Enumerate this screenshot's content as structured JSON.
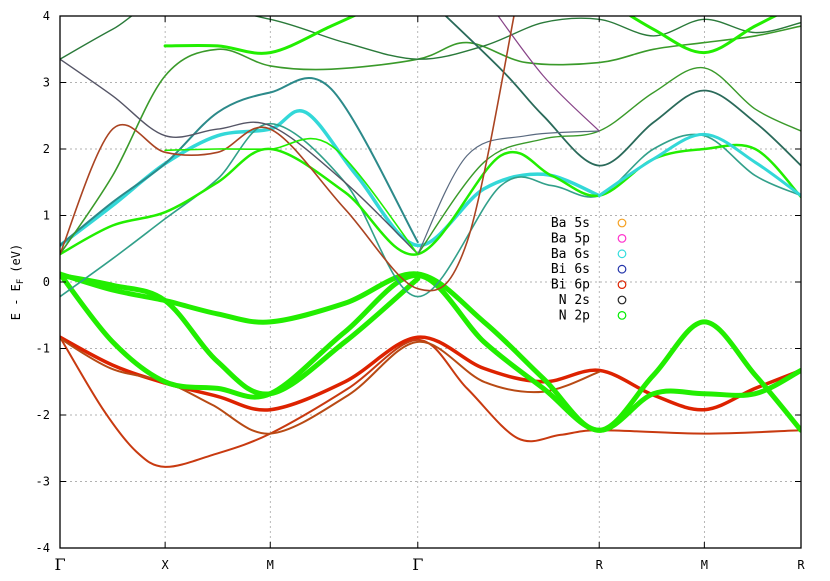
{
  "chart_data": {
    "type": "line",
    "ylabel": "E - E",
    "ylabel_sub": "F",
    "ylabel_unit": "(eV)",
    "ylim": [
      -4,
      4
    ],
    "yticks": [
      -4,
      -3,
      -2,
      -1,
      0,
      1,
      2,
      3,
      4
    ],
    "xlim": [
      0,
      4.37
    ],
    "kpoints": [
      {
        "label": "Γ",
        "x": 0
      },
      {
        "label": "X",
        "x": 0.62
      },
      {
        "label": "M",
        "x": 1.24
      },
      {
        "label": "Γ",
        "x": 2.11
      },
      {
        "label": "R",
        "x": 3.18
      },
      {
        "label": "M",
        "x": 3.8
      },
      {
        "label": "R",
        "x": 4.37
      }
    ],
    "grid": true,
    "legend_position": "center-right",
    "legend": [
      {
        "name": "Ba 5s",
        "color": "#f5a020"
      },
      {
        "name": "Ba 5p",
        "color": "#ff33cc"
      },
      {
        "name": "Ba 6s",
        "color": "#33dddd"
      },
      {
        "name": "Bi 6s",
        "color": "#2233aa"
      },
      {
        "name": "Bi 6p",
        "color": "#dd2200"
      },
      {
        "name": "N 2s",
        "color": "#222222"
      },
      {
        "name": "N 2p",
        "color": "#00ee00"
      }
    ],
    "series": [
      {
        "color": "#dd2200",
        "width": 3.5,
        "points": [
          [
            0,
            -0.83
          ],
          [
            0.31,
            -1.25
          ],
          [
            0.62,
            -1.52
          ],
          [
            0.93,
            -1.72
          ],
          [
            1.24,
            -1.92
          ],
          [
            1.68,
            -1.5
          ],
          [
            2.11,
            -0.83
          ],
          [
            2.5,
            -1.3
          ],
          [
            2.85,
            -1.5
          ],
          [
            3.18,
            -1.33
          ],
          [
            3.5,
            -1.7
          ],
          [
            3.8,
            -1.92
          ],
          [
            4.1,
            -1.6
          ],
          [
            4.37,
            -1.33
          ]
        ]
      },
      {
        "color": "#c83a10",
        "width": 2,
        "points": [
          [
            0,
            -0.83
          ],
          [
            0.25,
            -1.9
          ],
          [
            0.45,
            -2.55
          ],
          [
            0.62,
            -2.78
          ],
          [
            0.9,
            -2.6
          ],
          [
            1.24,
            -2.28
          ],
          [
            1.7,
            -1.6
          ],
          [
            2.11,
            -0.87
          ],
          [
            2.4,
            -1.6
          ],
          [
            2.7,
            -2.35
          ],
          [
            2.95,
            -2.3
          ],
          [
            3.18,
            -2.23
          ],
          [
            3.8,
            -2.28
          ],
          [
            4.37,
            -2.23
          ]
        ]
      },
      {
        "color": "#b84a14",
        "width": 2,
        "points": [
          [
            0,
            -0.85
          ],
          [
            0.3,
            -1.3
          ],
          [
            0.62,
            -1.5
          ],
          [
            0.9,
            -1.85
          ],
          [
            1.24,
            -2.28
          ],
          [
            1.7,
            -1.7
          ],
          [
            2.11,
            -0.9
          ],
          [
            2.5,
            -1.5
          ],
          [
            2.85,
            -1.65
          ],
          [
            3.18,
            -1.35
          ]
        ]
      },
      {
        "color": "#22ee00",
        "width": 5,
        "points": [
          [
            0,
            0.12
          ],
          [
            0.31,
            -0.12
          ],
          [
            0.62,
            -0.28
          ],
          [
            0.93,
            -0.48
          ],
          [
            1.24,
            -0.6
          ],
          [
            1.68,
            -0.32
          ],
          [
            2.11,
            0.12
          ],
          [
            2.5,
            -0.6
          ],
          [
            2.85,
            -1.45
          ],
          [
            3.18,
            -2.23
          ],
          [
            3.5,
            -1.4
          ],
          [
            3.8,
            -0.6
          ],
          [
            4.1,
            -1.4
          ],
          [
            4.37,
            -2.23
          ]
        ]
      },
      {
        "color": "#22ee00",
        "width": 5,
        "points": [
          [
            0,
            0.12
          ],
          [
            0.31,
            -0.9
          ],
          [
            0.62,
            -1.5
          ],
          [
            0.93,
            -1.6
          ],
          [
            1.24,
            -1.68
          ],
          [
            1.68,
            -0.75
          ],
          [
            2.11,
            0.1
          ],
          [
            2.5,
            -0.9
          ],
          [
            2.85,
            -1.6
          ],
          [
            3.18,
            -2.23
          ],
          [
            3.5,
            -1.68
          ],
          [
            3.8,
            -1.68
          ],
          [
            4.1,
            -1.68
          ],
          [
            4.37,
            -1.33
          ]
        ]
      },
      {
        "color": "#22ee00",
        "width": 5,
        "points": [
          [
            0,
            0.1
          ],
          [
            0.31,
            -0.05
          ],
          [
            0.62,
            -0.28
          ],
          [
            0.93,
            -1.2
          ],
          [
            1.24,
            -1.68
          ],
          [
            1.68,
            -0.9
          ],
          [
            2.11,
            0.05
          ]
        ]
      },
      {
        "color": "#33d8d8",
        "width": 3.5,
        "points": [
          [
            0,
            0.55
          ],
          [
            0.31,
            1.15
          ],
          [
            0.62,
            1.78
          ],
          [
            0.93,
            2.2
          ],
          [
            1.24,
            2.3
          ],
          [
            1.45,
            2.55
          ],
          [
            1.75,
            1.6
          ],
          [
            2.11,
            0.55
          ],
          [
            2.5,
            1.4
          ],
          [
            2.85,
            1.62
          ],
          [
            3.18,
            1.3
          ]
        ]
      },
      {
        "color": "#2c8a8a",
        "width": 2,
        "points": [
          [
            0,
            0.55
          ],
          [
            0.31,
            1.2
          ],
          [
            0.62,
            1.78
          ],
          [
            0.93,
            2.55
          ],
          [
            1.24,
            2.85
          ],
          [
            1.6,
            2.9
          ],
          [
            2.11,
            0.6
          ]
        ]
      },
      {
        "color": "#32a08a",
        "width": 1.6,
        "points": [
          [
            0,
            -0.22
          ],
          [
            0.31,
            0.35
          ],
          [
            0.62,
            0.95
          ],
          [
            0.93,
            1.55
          ],
          [
            1.24,
            2.38
          ],
          [
            1.68,
            1.5
          ],
          [
            2.11,
            -0.22
          ],
          [
            2.6,
            1.45
          ],
          [
            2.9,
            1.45
          ],
          [
            3.18,
            1.3
          ],
          [
            3.5,
            2.0
          ],
          [
            3.8,
            2.2
          ],
          [
            4.1,
            1.6
          ],
          [
            4.37,
            1.3
          ]
        ]
      },
      {
        "color": "#22ee00",
        "width": 2.5,
        "points": [
          [
            0,
            0.42
          ],
          [
            0.31,
            0.85
          ],
          [
            0.62,
            1.05
          ],
          [
            0.93,
            1.5
          ],
          [
            1.24,
            2.0
          ],
          [
            1.68,
            1.35
          ],
          [
            2.11,
            0.42
          ],
          [
            2.6,
            1.9
          ],
          [
            2.9,
            1.6
          ],
          [
            3.18,
            1.3
          ],
          [
            3.5,
            1.85
          ],
          [
            3.8,
            2.0
          ],
          [
            4.1,
            2.0
          ],
          [
            4.37,
            1.28
          ]
        ]
      },
      {
        "color": "#3a9a2a",
        "width": 1.6,
        "points": [
          [
            0,
            0.42
          ],
          [
            0.31,
            1.6
          ],
          [
            0.62,
            3.1
          ],
          [
            0.93,
            3.5
          ],
          [
            1.24,
            3.25
          ],
          [
            1.6,
            3.2
          ],
          [
            2.11,
            3.35
          ],
          [
            2.4,
            3.6
          ],
          [
            2.75,
            3.3
          ],
          [
            3.18,
            3.3
          ],
          [
            3.5,
            3.5
          ],
          [
            3.8,
            3.6
          ],
          [
            4.1,
            3.7
          ],
          [
            4.37,
            3.85
          ]
        ]
      },
      {
        "color": "#555566",
        "width": 1.4,
        "points": [
          [
            0,
            3.35
          ],
          [
            0.31,
            2.8
          ],
          [
            0.62,
            2.2
          ],
          [
            0.93,
            2.3
          ],
          [
            1.24,
            2.35
          ],
          [
            1.68,
            1.5
          ],
          [
            2.11,
            0.42
          ]
        ]
      },
      {
        "color": "#2a7a3a",
        "width": 1.4,
        "points": [
          [
            0,
            3.35
          ],
          [
            0.31,
            3.8
          ],
          [
            0.62,
            4.2
          ],
          [
            1.24,
            3.95
          ],
          [
            1.68,
            3.6
          ],
          [
            2.11,
            3.35
          ],
          [
            2.5,
            3.55
          ],
          [
            2.85,
            3.9
          ],
          [
            3.18,
            3.95
          ],
          [
            3.5,
            3.7
          ],
          [
            3.8,
            3.95
          ],
          [
            4.1,
            3.75
          ],
          [
            4.37,
            3.9
          ]
        ]
      },
      {
        "color": "#22ee00",
        "width": 3,
        "points": [
          [
            0.62,
            3.55
          ],
          [
            0.93,
            3.55
          ],
          [
            1.24,
            3.45
          ],
          [
            1.6,
            3.85
          ],
          [
            1.9,
            4.2
          ]
        ]
      },
      {
        "color": "#22ee00",
        "width": 3,
        "points": [
          [
            3.18,
            4.3
          ],
          [
            3.5,
            3.8
          ],
          [
            3.8,
            3.45
          ],
          [
            4.1,
            3.85
          ],
          [
            4.37,
            4.2
          ]
        ]
      },
      {
        "color": "#2a6a5a",
        "width": 1.8,
        "points": [
          [
            2.11,
            4.4
          ],
          [
            2.6,
            3.2
          ],
          [
            2.85,
            2.5
          ],
          [
            3.18,
            1.75
          ],
          [
            3.5,
            2.4
          ],
          [
            3.8,
            2.88
          ],
          [
            4.1,
            2.4
          ],
          [
            4.37,
            1.75
          ]
        ]
      },
      {
        "color": "#33d8d8",
        "width": 3,
        "points": [
          [
            3.18,
            1.3
          ],
          [
            3.5,
            1.85
          ],
          [
            3.8,
            2.22
          ],
          [
            4.1,
            1.8
          ],
          [
            4.37,
            1.3
          ]
        ]
      },
      {
        "color": "#3a9a2a",
        "width": 1.4,
        "points": [
          [
            2.11,
            0.42
          ],
          [
            2.5,
            1.8
          ],
          [
            2.85,
            2.15
          ],
          [
            3.18,
            2.27
          ],
          [
            3.5,
            2.85
          ],
          [
            3.8,
            3.22
          ],
          [
            4.1,
            2.6
          ],
          [
            4.37,
            2.27
          ]
        ]
      },
      {
        "color": "#5a6a80",
        "width": 1.2,
        "points": [
          [
            2.11,
            0.42
          ],
          [
            2.4,
            1.9
          ],
          [
            2.75,
            2.2
          ],
          [
            3.18,
            2.27
          ]
        ]
      },
      {
        "color": "#884488",
        "width": 1.2,
        "points": [
          [
            2.5,
            4.3
          ],
          [
            2.85,
            3.1
          ],
          [
            3.18,
            2.27
          ]
        ]
      },
      {
        "color": "#aa4422",
        "width": 1.6,
        "points": [
          [
            0,
            0.42
          ],
          [
            0.31,
            2.3
          ],
          [
            0.62,
            1.95
          ],
          [
            0.93,
            1.95
          ],
          [
            1.24,
            2.3
          ],
          [
            1.68,
            1.1
          ],
          [
            2.11,
            -0.1
          ],
          [
            2.4,
            0.6
          ],
          [
            2.7,
            4.3
          ]
        ]
      },
      {
        "color": "#22ee00",
        "width": 1.6,
        "points": [
          [
            0.62,
            1.98
          ],
          [
            0.93,
            2.0
          ],
          [
            1.24,
            2.0
          ],
          [
            1.6,
            2.05
          ],
          [
            2.11,
            0.42
          ]
        ]
      }
    ]
  }
}
